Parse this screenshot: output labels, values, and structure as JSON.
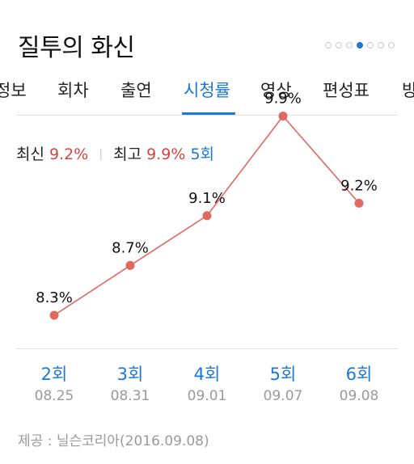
{
  "header": {
    "title": "질투의 화신"
  },
  "pager": {
    "count": 7,
    "active": 4
  },
  "tabs": [
    {
      "label": "정보"
    },
    {
      "label": "회차"
    },
    {
      "label": "출연"
    },
    {
      "label": "시청률"
    },
    {
      "label": "영상"
    },
    {
      "label": "편성표"
    },
    {
      "label": "방"
    }
  ],
  "summary": {
    "latest_label": "최신",
    "latest_value": "9.2%",
    "best_label": "최고",
    "best_value": "9.9%",
    "best_episode": "5회"
  },
  "colors": {
    "accent": "#1a78d6",
    "rating_red": "#d7443e",
    "line": "#e0685e",
    "muted": "#9a9a9a"
  },
  "chart_data": {
    "type": "line",
    "categories": [
      "2회",
      "3회",
      "4회",
      "5회",
      "6회"
    ],
    "dates": [
      "08.25",
      "08.31",
      "09.01",
      "09.07",
      "09.08"
    ],
    "values": [
      8.3,
      8.7,
      9.1,
      9.9,
      9.2
    ],
    "labels": [
      "8.3%",
      "8.7%",
      "9.1%",
      "9.9%",
      "9.2%"
    ]
  },
  "footer": {
    "source": "제공 : 닐슨코리아(2016.09.08)"
  }
}
